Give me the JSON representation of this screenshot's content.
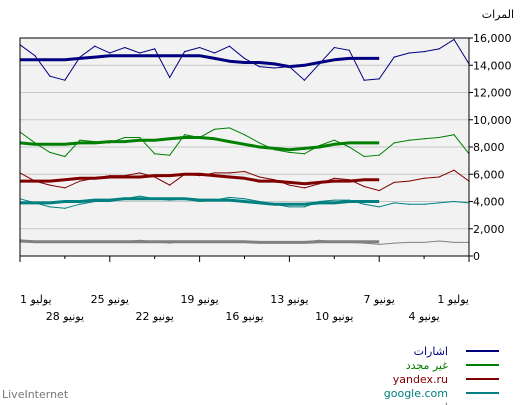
{
  "footer_text": "LiveInternet",
  "chart_data": {
    "type": "line",
    "ylabel": "المرات",
    "ylim": [
      0,
      16000
    ],
    "yticks": [
      "0",
      "2,000",
      "4,000",
      "6,000",
      "8,000",
      "10,000",
      "12,000",
      "14,000",
      "16,000"
    ],
    "y_axis_side": "right",
    "x_direction": "right-to-left",
    "grid": true,
    "xticks_upper": [
      "1 يوليو",
      "7 يونيو",
      "13 يونيو",
      "19 يونيو",
      "25 يونيو",
      "1 يوليو"
    ],
    "xticks_lower": [
      "4 يونيو",
      "10 يونيو",
      "16 يونيو",
      "22 يونيو",
      "28 يونيو"
    ],
    "x": [
      "Jun 1",
      "Jun 2",
      "Jun 3",
      "Jun 4",
      "Jun 5",
      "Jun 6",
      "Jun 7",
      "Jun 8",
      "Jun 9",
      "Jun 10",
      "Jun 11",
      "Jun 12",
      "Jun 13",
      "Jun 14",
      "Jun 15",
      "Jun 16",
      "Jun 17",
      "Jun 18",
      "Jun 19",
      "Jun 20",
      "Jun 21",
      "Jun 22",
      "Jun 23",
      "Jun 24",
      "Jun 25",
      "Jun 26",
      "Jun 27",
      "Jun 28",
      "Jun 29",
      "Jun 30",
      "Jul 1"
    ],
    "series": [
      {
        "name": "اشارات",
        "color": "#000080",
        "values": [
          14100,
          15900,
          15200,
          15000,
          14900,
          14600,
          13000,
          12900,
          15100,
          15300,
          14100,
          12900,
          13900,
          13800,
          13900,
          14500,
          15400,
          14900,
          15300,
          15000,
          13100,
          15200,
          14900,
          15300,
          14900,
          15400,
          14600,
          12900,
          13200,
          14700,
          15500
        ],
        "trend": [
          null,
          null,
          null,
          null,
          null,
          null,
          14500,
          14500,
          14500,
          14400,
          14200,
          14000,
          13900,
          14100,
          14200,
          14200,
          14300,
          14500,
          14700,
          14700,
          14700,
          14700,
          14700,
          14700,
          14700,
          14600,
          14500,
          14400,
          14400,
          14400,
          14400
        ]
      },
      {
        "name": "غير مجدد",
        "color": "#008000",
        "values": [
          7500,
          8900,
          8700,
          8600,
          8500,
          8300,
          7400,
          7300,
          8000,
          8500,
          8100,
          7500,
          7600,
          7800,
          8300,
          8900,
          9400,
          9300,
          8700,
          8900,
          7400,
          7500,
          8700,
          8700,
          8300,
          8400,
          8500,
          7300,
          7600,
          8300,
          9100
        ],
        "trend": [
          null,
          null,
          null,
          null,
          null,
          null,
          8300,
          8300,
          8300,
          8200,
          8000,
          7900,
          7800,
          7900,
          8000,
          8200,
          8400,
          8600,
          8700,
          8700,
          8600,
          8500,
          8500,
          8400,
          8400,
          8300,
          8300,
          8200,
          8200,
          8200,
          8300
        ]
      },
      {
        "name": "yandex.ru",
        "color": "#800000",
        "values": [
          5500,
          6300,
          5800,
          5700,
          5500,
          5400,
          4800,
          5100,
          5600,
          5700,
          5300,
          5000,
          5200,
          5600,
          5800,
          6200,
          6100,
          6100,
          5900,
          6000,
          5200,
          5800,
          6100,
          5900,
          5900,
          5700,
          5500,
          5000,
          5200,
          5500,
          6100
        ],
        "trend": [
          null,
          null,
          null,
          null,
          null,
          null,
          5600,
          5600,
          5500,
          5500,
          5400,
          5300,
          5400,
          5500,
          5500,
          5700,
          5800,
          5900,
          6000,
          6000,
          5900,
          5900,
          5800,
          5800,
          5800,
          5700,
          5700,
          5600,
          5500,
          5500,
          5500
        ]
      },
      {
        "name": "google.com",
        "color": "#008080",
        "values": [
          3900,
          4000,
          3900,
          3800,
          3800,
          3900,
          3600,
          3800,
          4100,
          4100,
          4000,
          3600,
          3600,
          3800,
          4000,
          4200,
          4300,
          4100,
          4000,
          4200,
          4100,
          4200,
          4400,
          4200,
          4000,
          4000,
          3800,
          3500,
          3600,
          3900,
          4200
        ],
        "trend": [
          null,
          null,
          null,
          null,
          null,
          null,
          4000,
          4000,
          4000,
          3900,
          3900,
          3800,
          3800,
          3800,
          3900,
          4000,
          4100,
          4100,
          4100,
          4200,
          4200,
          4200,
          4200,
          4200,
          4100,
          4100,
          4000,
          4000,
          3900,
          3900,
          3900
        ]
      },
      {
        "name": "اخرى",
        "color": "#808080",
        "values": [
          1000,
          1000,
          1100,
          1000,
          1000,
          950,
          850,
          950,
          1000,
          1050,
          1150,
          1050,
          1000,
          1000,
          1000,
          1050,
          1050,
          1100,
          1050,
          1100,
          950,
          1050,
          1150,
          1050,
          1050,
          1050,
          1100,
          1000,
          1000,
          1050,
          1200
        ],
        "trend": [
          null,
          null,
          null,
          null,
          null,
          null,
          1050,
          1050,
          1050,
          1050,
          1050,
          1000,
          1000,
          1000,
          1000,
          1050,
          1050,
          1050,
          1050,
          1050,
          1050,
          1050,
          1050,
          1050,
          1050,
          1050,
          1050,
          1050,
          1050,
          1050,
          1100
        ]
      }
    ]
  }
}
